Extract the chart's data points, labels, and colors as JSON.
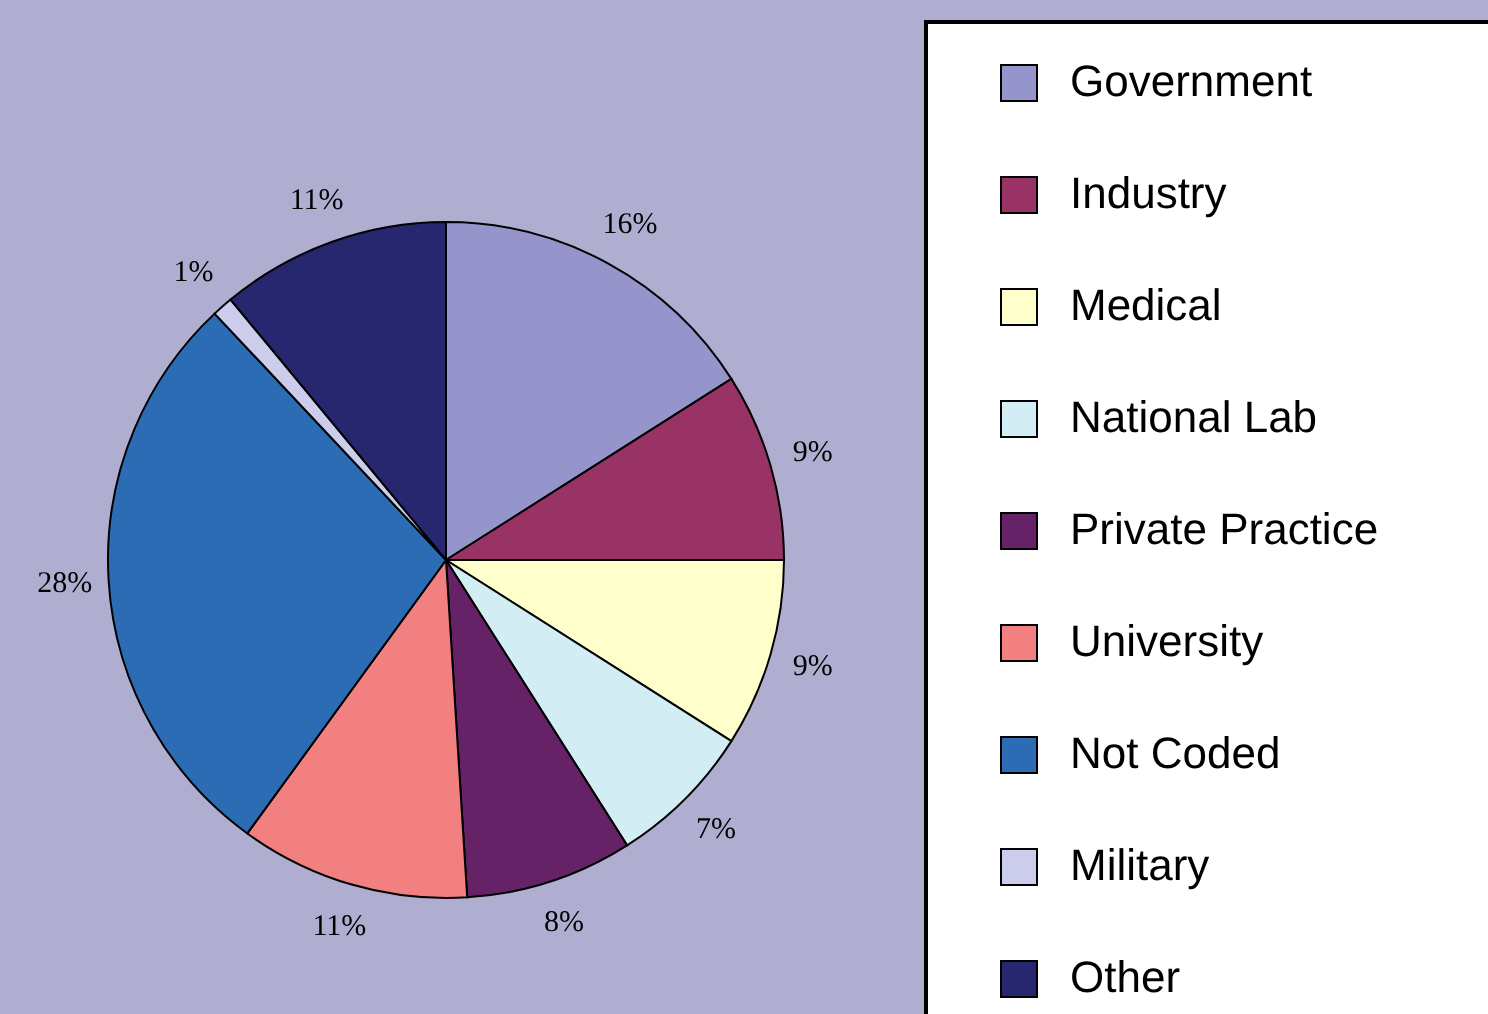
{
  "chart_data": {
    "type": "pie",
    "categories": [
      "Government",
      "Industry",
      "Medical",
      "National Lab",
      "Private Practice",
      "University",
      "Not Coded",
      "Military",
      "Other"
    ],
    "values": [
      16,
      9,
      9,
      7,
      8,
      11,
      28,
      1,
      11
    ],
    "value_labels": [
      "16%",
      "9%",
      "9%",
      "7%",
      "8%",
      "11%",
      "28%",
      "1%",
      "11%"
    ],
    "colors": [
      "#9595cb",
      "#993366",
      "#ffffcc",
      "#d2edf3",
      "#662266",
      "#f28080",
      "#2b6cb4",
      "#ccccec",
      "#27276f"
    ],
    "legend": "right"
  }
}
